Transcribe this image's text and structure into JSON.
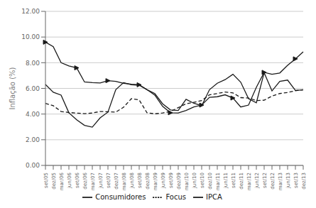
{
  "chart_data": {
    "type": "line",
    "ylabel": "Inflação (%)",
    "categories": [
      "set/05",
      "dez/05",
      "mar/06",
      "jun/06",
      "set/06",
      "dez/06",
      "mar/07",
      "jun/07",
      "set/07",
      "dez/07",
      "mar/08",
      "jun/08",
      "set/08",
      "dez/08",
      "mar/09",
      "jun/09",
      "set/09",
      "dez/09",
      "mar/10",
      "jun/10",
      "set/10",
      "dez/10",
      "mar/11",
      "jun/11",
      "set/11",
      "dez/11",
      "mar/12",
      "jun/12",
      "set/12",
      "dez/12",
      "mar/13",
      "jun/13",
      "set/13",
      "dez/13"
    ],
    "series": [
      {
        "name": "Focus",
        "color": "#1a1a1a",
        "line_style": "dashed",
        "values": [
          4.83,
          4.65,
          4.2,
          4.12,
          4.08,
          4.03,
          4.08,
          4.2,
          4.18,
          4.15,
          4.53,
          5.2,
          5.1,
          4.1,
          4.02,
          4.08,
          4.2,
          4.5,
          4.8,
          4.92,
          5.05,
          5.5,
          5.6,
          5.72,
          5.65,
          5.28,
          5.25,
          5.05,
          5.08,
          5.4,
          5.6,
          5.68,
          5.82,
          5.9
        ]
      },
      {
        "name": "IPCA",
        "color": "#1a1a1a",
        "line_style": "solid",
        "values": [
          6.3,
          5.7,
          5.48,
          4.1,
          3.55,
          3.12,
          2.98,
          3.7,
          4.15,
          5.9,
          6.45,
          6.28,
          6.25,
          5.9,
          5.6,
          4.8,
          4.32,
          4.28,
          5.15,
          4.84,
          4.65,
          5.9,
          6.4,
          6.68,
          7.1,
          6.48,
          5.2,
          4.88,
          7.22,
          5.8,
          6.55,
          6.65,
          5.84,
          5.88
        ]
      },
      {
        "name": "Consumidores",
        "color": "#1a1a1a",
        "line_style": "solid",
        "marker": "triangle-right",
        "values": [
          9.6,
          9.25,
          8.0,
          7.75,
          7.6,
          6.5,
          6.45,
          6.42,
          6.6,
          6.55,
          6.4,
          6.32,
          6.28,
          5.9,
          5.48,
          4.6,
          4.1,
          4.08,
          4.28,
          4.55,
          4.7,
          5.3,
          5.35,
          5.5,
          5.25,
          4.55,
          4.7,
          6.08,
          7.25,
          7.1,
          7.2,
          7.8,
          8.3,
          8.85
        ]
      }
    ],
    "ylim": [
      0,
      12
    ],
    "yticks": [
      {
        "value": 0,
        "label": "0.00"
      },
      {
        "value": 2,
        "label": "2.00"
      },
      {
        "value": 4,
        "label": "4.00"
      },
      {
        "value": 6,
        "label": "6.00"
      },
      {
        "value": 8,
        "label": "8.00"
      },
      {
        "value": 10,
        "label": "10.00"
      },
      {
        "value": 12,
        "label": "12.00"
      }
    ],
    "grid": true,
    "legend": "bottom"
  }
}
